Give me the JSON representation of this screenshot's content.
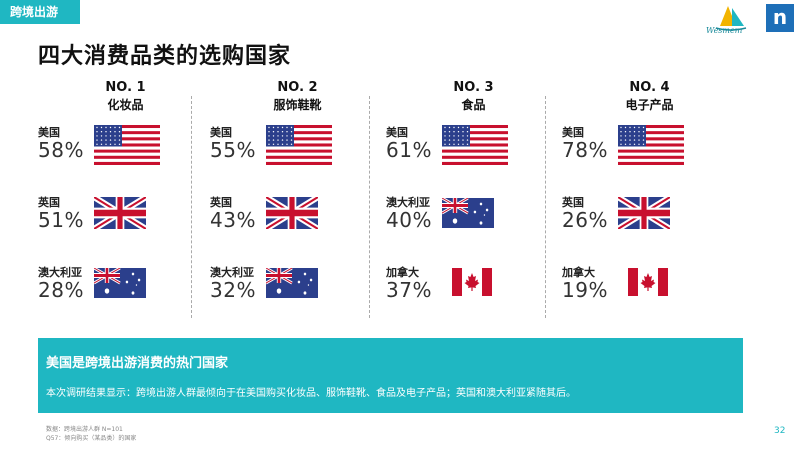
{
  "header": {
    "tag_label": "跨境出游",
    "brand_word": "Wesmem",
    "n_logo": "n",
    "title": "四大消费品类的选购国家"
  },
  "categories": [
    {
      "no": "NO. 1",
      "name": "化妆品",
      "rows": [
        {
          "country": "美国",
          "percent": "58%",
          "flag": "us"
        },
        {
          "country": "英国",
          "percent": "51%",
          "flag": "uk"
        },
        {
          "country": "澳大利亚",
          "percent": "28%",
          "flag": "au"
        }
      ]
    },
    {
      "no": "NO. 2",
      "name": "服饰鞋靴",
      "rows": [
        {
          "country": "美国",
          "percent": "55%",
          "flag": "us"
        },
        {
          "country": "英国",
          "percent": "43%",
          "flag": "uk"
        },
        {
          "country": "澳大利亚",
          "percent": "32%",
          "flag": "au"
        }
      ]
    },
    {
      "no": "NO. 3",
      "name": "食品",
      "rows": [
        {
          "country": "美国",
          "percent": "61%",
          "flag": "us"
        },
        {
          "country": "澳大利亚",
          "percent": "40%",
          "flag": "au"
        },
        {
          "country": "加拿大",
          "percent": "37%",
          "flag": "ca"
        }
      ]
    },
    {
      "no": "NO. 4",
      "name": "电子产品",
      "rows": [
        {
          "country": "美国",
          "percent": "78%",
          "flag": "us"
        },
        {
          "country": "英国",
          "percent": "26%",
          "flag": "uk"
        },
        {
          "country": "加拿大",
          "percent": "19%",
          "flag": "ca"
        }
      ]
    }
  ],
  "banner": {
    "title": "美国是跨境出游消费的热门国家",
    "text": "本次调研结果显示：跨境出游人群最倾向于在美国购买化妆品、服饰鞋靴、食品及电子产品；英国和澳大利亚紧随其后。"
  },
  "footer": {
    "source_line1": "数据：跨境出游人群 N=101",
    "source_line2": "Q57：倾向购买（某品类）的国家",
    "page_number": "32"
  },
  "colors": {
    "accent": "#1fb7c2",
    "flag_red": "#c8102e",
    "flag_blue": "#2b3f8c"
  }
}
